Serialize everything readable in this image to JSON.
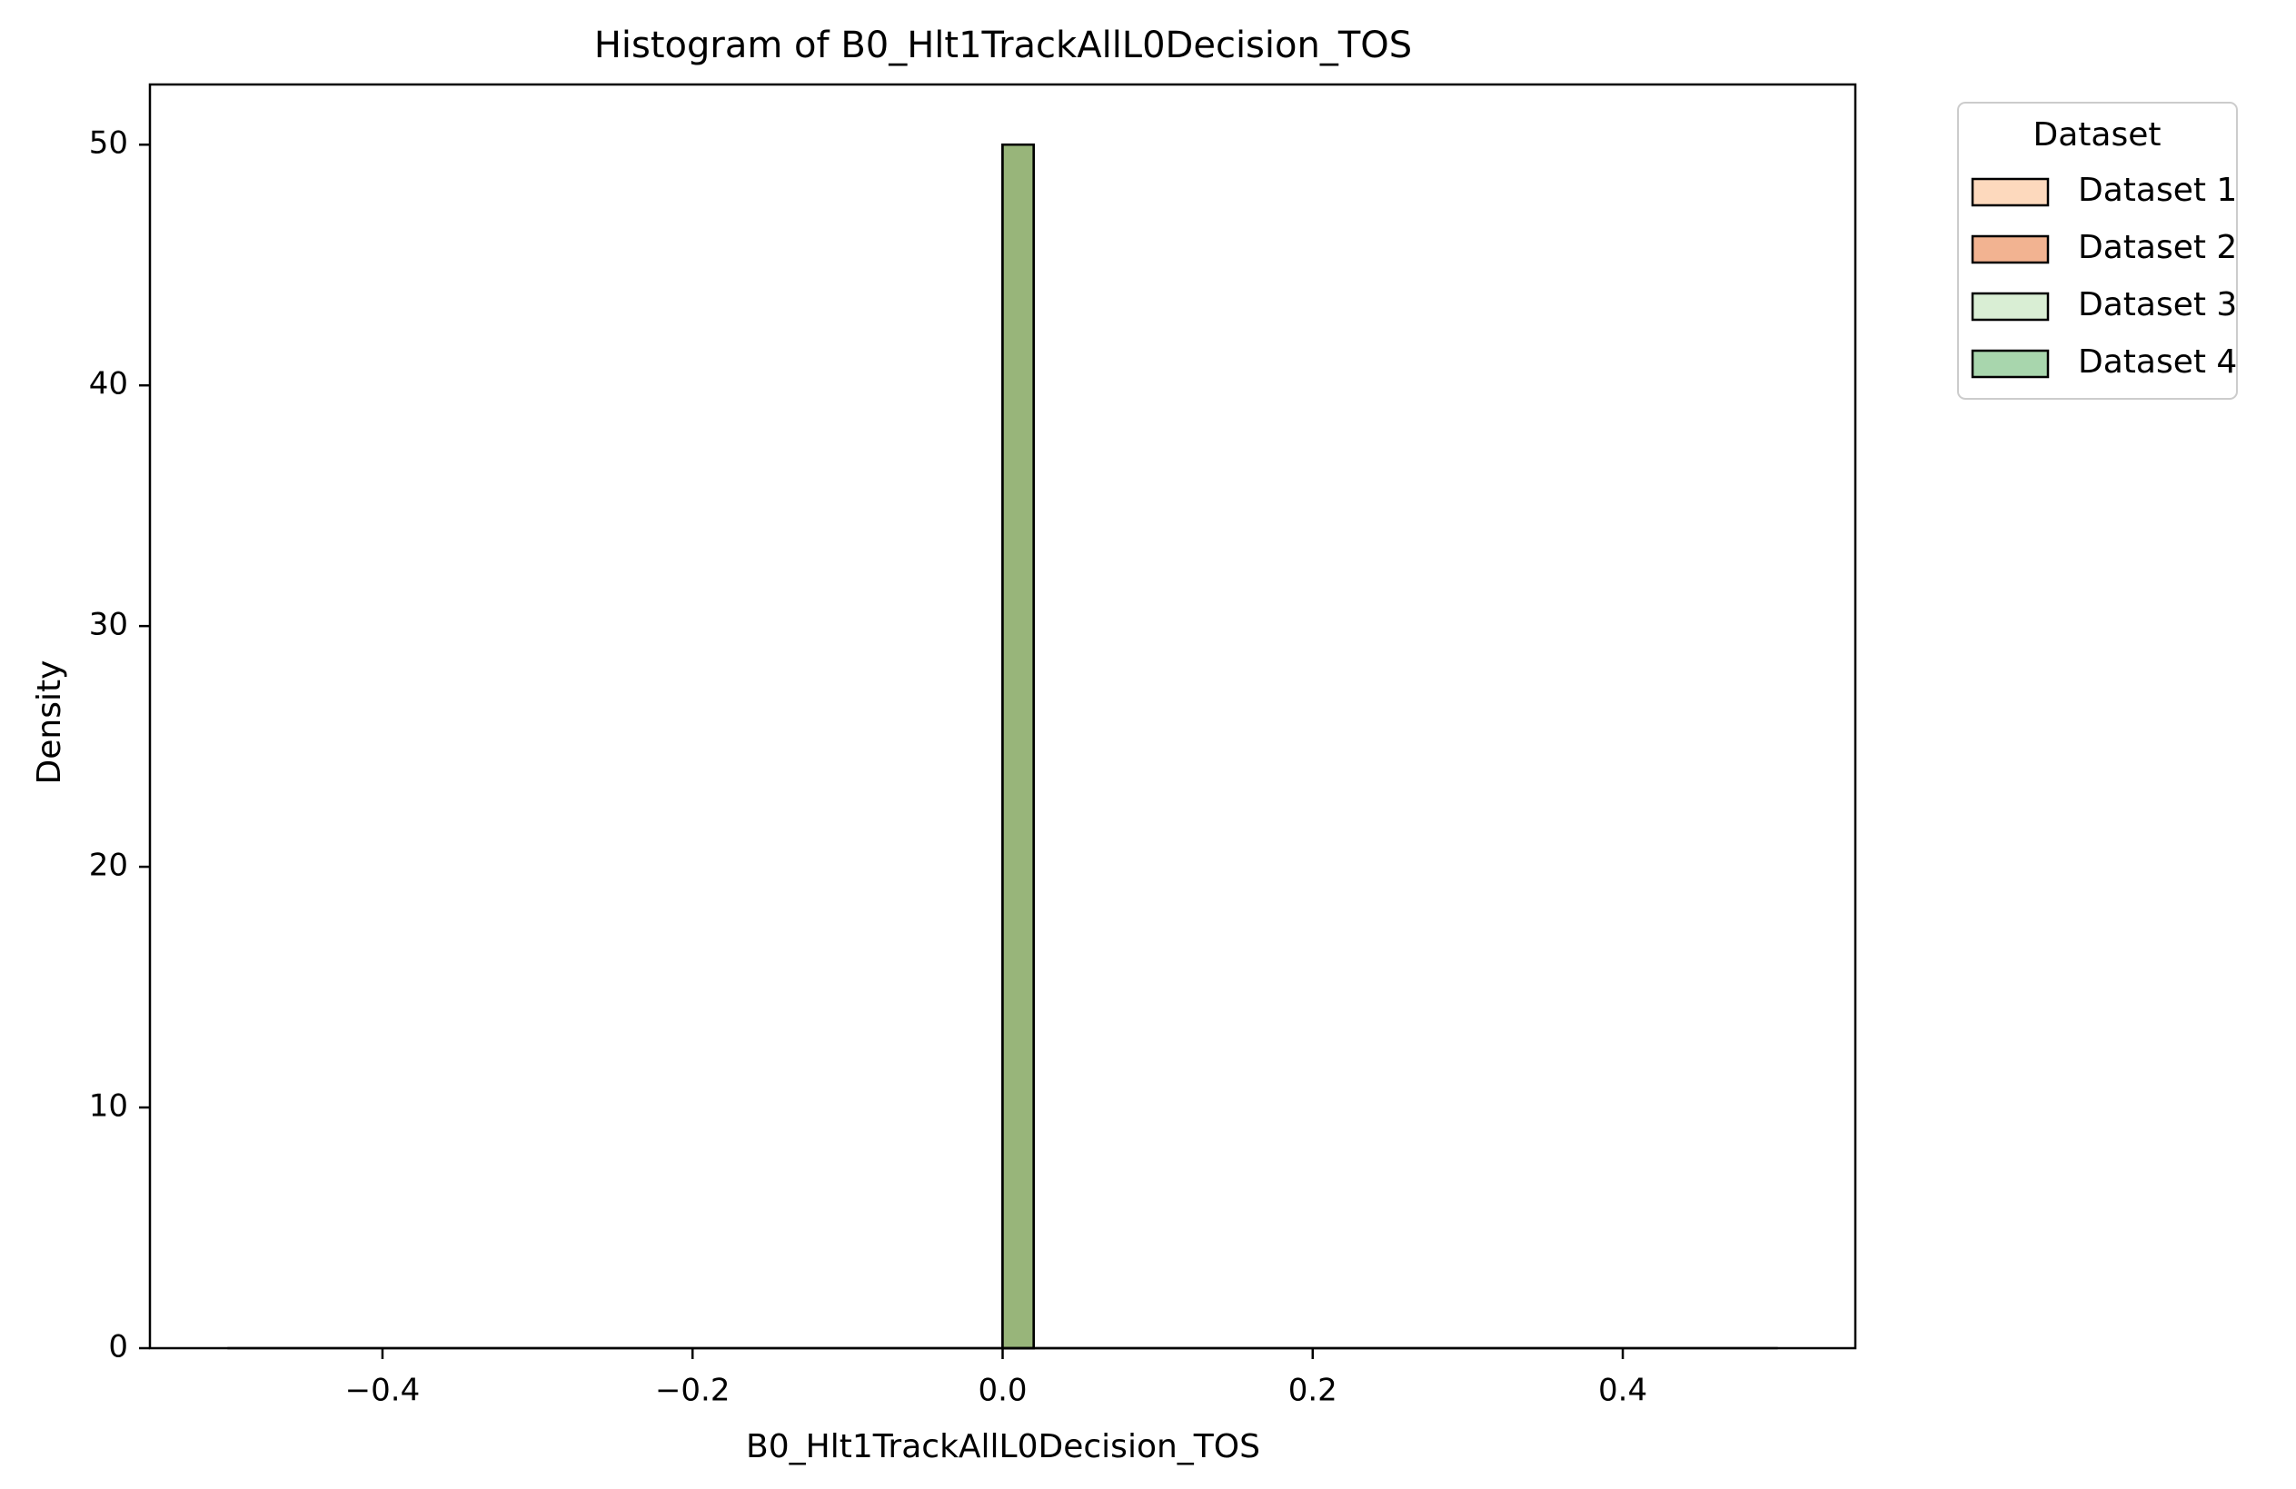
{
  "chart_data": {
    "type": "bar",
    "title": "Histogram of B0_Hlt1TrackAllL0Decision_TOS",
    "xlabel": "B0_Hlt1TrackAllL0Decision_TOS",
    "ylabel": "Density",
    "xlim": [
      -0.55,
      0.55
    ],
    "ylim": [
      0,
      52.5
    ],
    "xticks": [
      -0.4,
      -0.2,
      0.0,
      0.2,
      0.4
    ],
    "xtick_labels": [
      "−0.4",
      "−0.2",
      "0.0",
      "0.2",
      "0.4"
    ],
    "yticks": [
      0,
      10,
      20,
      30,
      40,
      50
    ],
    "ytick_labels": [
      "0",
      "10",
      "20",
      "30",
      "40",
      "50"
    ],
    "grid": false,
    "bin_range": [
      -0.5,
      0.5
    ],
    "bin_width": 0.02,
    "legend": {
      "title": "Dataset",
      "placement": "outside upper right"
    },
    "series": [
      {
        "name": "Dataset 1",
        "color": "#fdd9bd",
        "bins": [
          {
            "x0": 0.0,
            "x1": 0.02,
            "density": 50
          }
        ]
      },
      {
        "name": "Dataset 2",
        "color": "#f2b391",
        "bins": [
          {
            "x0": 0.0,
            "x1": 0.02,
            "density": 50
          }
        ]
      },
      {
        "name": "Dataset 3",
        "color": "#d9eed4",
        "bins": [
          {
            "x0": 0.0,
            "x1": 0.02,
            "density": 50
          }
        ]
      },
      {
        "name": "Dataset 4",
        "color": "#a8d6ad",
        "bins": [
          {
            "x0": 0.0,
            "x1": 0.02,
            "density": 50
          }
        ]
      }
    ],
    "overlap_color": "#98b57a"
  }
}
